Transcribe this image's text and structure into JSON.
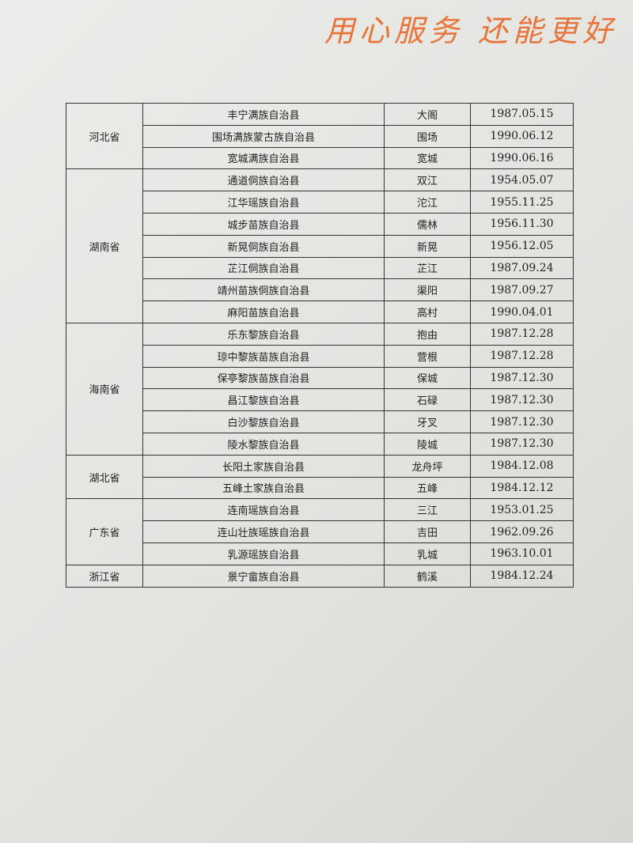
{
  "header": {
    "slogan": "用心服务 还能更好"
  },
  "table": {
    "groups": [
      {
        "province": "河北省",
        "rows": [
          [
            "丰宁满族自治县",
            "大阁",
            "1987.05.15"
          ],
          [
            "围场满族蒙古族自治县",
            "围场",
            "1990.06.12"
          ],
          [
            "宽城满族自治县",
            "宽城",
            "1990.06.16"
          ]
        ]
      },
      {
        "province": "湖南省",
        "rows": [
          [
            "通道侗族自治县",
            "双江",
            "1954.05.07"
          ],
          [
            "江华瑶族自治县",
            "沱江",
            "1955.11.25"
          ],
          [
            "城步苗族自治县",
            "儒林",
            "1956.11.30"
          ],
          [
            "新晃侗族自治县",
            "新晃",
            "1956.12.05"
          ],
          [
            "芷江侗族自治县",
            "芷江",
            "1987.09.24"
          ],
          [
            "靖州苗族侗族自治县",
            "渠阳",
            "1987.09.27"
          ],
          [
            "麻阳苗族自治县",
            "高村",
            "1990.04.01"
          ]
        ]
      },
      {
        "province": "海南省",
        "rows": [
          [
            "乐东黎族自治县",
            "抱由",
            "1987.12.28"
          ],
          [
            "琼中黎族苗族自治县",
            "营根",
            "1987.12.28"
          ],
          [
            "保亭黎族苗族自治县",
            "保城",
            "1987.12.30"
          ],
          [
            "昌江黎族自治县",
            "石碌",
            "1987.12.30"
          ],
          [
            "白沙黎族自治县",
            "牙叉",
            "1987.12.30"
          ],
          [
            "陵水黎族自治县",
            "陵城",
            "1987.12.30"
          ]
        ]
      },
      {
        "province": "湖北省",
        "rows": [
          [
            "长阳土家族自治县",
            "龙舟坪",
            "1984.12.08"
          ],
          [
            "五峰土家族自治县",
            "五峰",
            "1984.12.12"
          ]
        ]
      },
      {
        "province": "广东省",
        "rows": [
          [
            "连南瑶族自治县",
            "三江",
            "1953.01.25"
          ],
          [
            "连山壮族瑶族自治县",
            "吉田",
            "1962.09.26"
          ],
          [
            "乳源瑶族自治县",
            "乳城",
            "1963.10.01"
          ]
        ]
      },
      {
        "province": "浙江省",
        "rows": [
          [
            "景宁畲族自治县",
            "鹤溪",
            "1984.12.24"
          ]
        ]
      }
    ]
  }
}
